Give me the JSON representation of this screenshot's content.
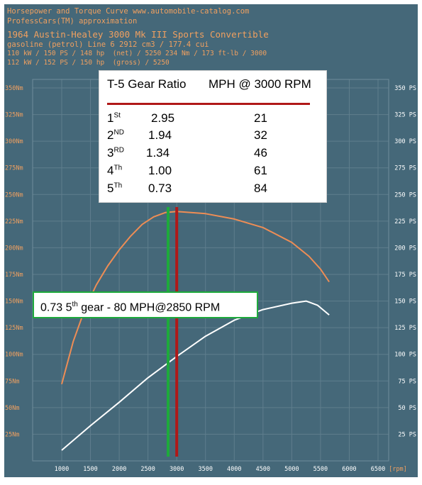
{
  "header": {
    "line1": "Horsepower and Torque Curve www.automobile-catalog.com",
    "line2": "ProfessCars(TM) approximation",
    "line3": "1964 Austin-Healey 3000 Mk III Sports Convertible",
    "line4": "gasoline (petrol) Line 6 2912 cm3 / 177.4 cui",
    "line5": "110 kW / 150 PS / 148 hp  (net) / 5250 234 Nm / 173 ft-lb / 3000",
    "line6": "112 kW / 152 PS / 150 hp  (gross) / 5250"
  },
  "gear_table": {
    "col1_header": "T-5 Gear Ratio",
    "col2_header": "MPH @ 3000 RPM",
    "rows": [
      {
        "gear": "1",
        "sup": "St",
        "ratio": "2.95",
        "mph": "21"
      },
      {
        "gear": "2",
        "sup": "ND",
        "ratio": "1.94",
        "mph": "32"
      },
      {
        "gear": "3",
        "sup": "RD",
        "ratio": "1.34",
        "mph": "46"
      },
      {
        "gear": "4",
        "sup": "Th",
        "ratio": "1.00",
        "mph": "61"
      },
      {
        "gear": "5",
        "sup": "Th",
        "ratio": "0.73",
        "mph": "84"
      }
    ]
  },
  "callout": {
    "part1": "0.73 5",
    "sup": "th",
    "part2": " gear  -  80 MPH@2850  RPM"
  },
  "colors": {
    "background": "#456879",
    "torque": "#ee8d55",
    "power": "#ffffff",
    "marker_green": "#1eaa3c",
    "marker_red": "#b01818",
    "axis_text": "#f0a060",
    "grid": "#5f7e8d"
  },
  "chart_data": {
    "type": "line",
    "x_unit": "[rpm]",
    "x_ticks": [
      1000,
      1500,
      2000,
      2500,
      3000,
      3500,
      4000,
      4500,
      5000,
      5500,
      6000,
      6500
    ],
    "xlim": [
      1000,
      6500
    ],
    "y_left_ticks": [
      "25Nm",
      "50Nm",
      "75Nm",
      "100Nm",
      "125Nm",
      "150Nm",
      "175Nm",
      "200Nm",
      "225Nm",
      "250Nm",
      "275Nm",
      "300Nm",
      "325Nm",
      "350Nm"
    ],
    "y_right_ticks": [
      "25 PS",
      "50 PS",
      "75 PS",
      "100 PS",
      "125 PS",
      "150 PS",
      "175 PS",
      "200 PS",
      "225 PS",
      "250 PS",
      "275 PS",
      "300 PS",
      "325 PS",
      "350 PS"
    ],
    "ylim": [
      0,
      350
    ],
    "series": [
      {
        "name": "",
        "unit": "Nm",
        "x": [
          1000,
          1200,
          1400,
          1600,
          1800,
          2000,
          2200,
          2400,
          2600,
          2800,
          3000,
          3500,
          4000,
          4500,
          5000,
          5300,
          5500,
          5650
        ],
        "y": [
          72,
          112,
          142,
          165,
          183,
          198,
          211,
          222,
          229,
          233,
          234,
          232,
          227,
          219,
          205,
          192,
          180,
          168
        ]
      },
      {
        "name": "",
        "unit": "PS",
        "x": [
          1000,
          1500,
          2000,
          2500,
          3000,
          3500,
          4000,
          4500,
          5000,
          5250,
          5450,
          5650
        ],
        "y": [
          10,
          33,
          55,
          78,
          98,
          117,
          132,
          142,
          148,
          150,
          146,
          137
        ]
      }
    ],
    "markers": [
      {
        "x": 2850,
        "color": "green"
      },
      {
        "x": 3000,
        "color": "red"
      }
    ],
    "grid": true
  }
}
